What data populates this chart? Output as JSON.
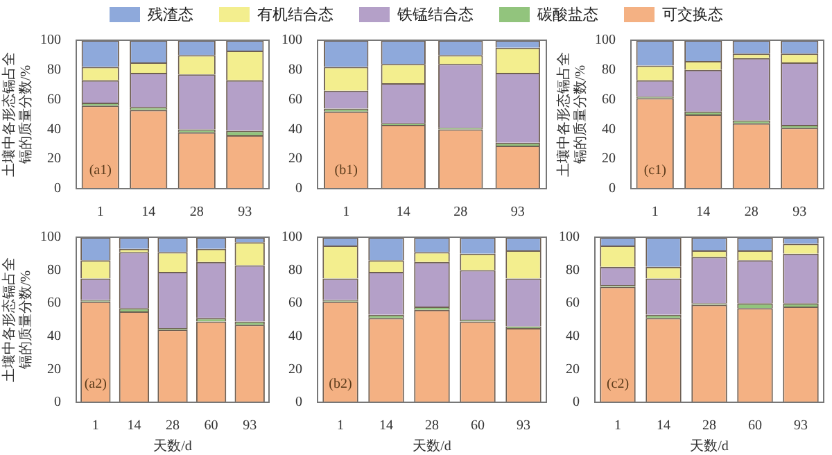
{
  "chart_data": [
    {
      "type": "bar",
      "stacked": true,
      "legend": "top",
      "ylabel": "土壤中各形态镉占全镉的质量分数/%",
      "annotations": [
        "(a1)"
      ],
      "categories": [
        "1",
        "14",
        "28",
        "93"
      ],
      "ylim": [
        0,
        100
      ],
      "yticks": [
        0,
        20,
        40,
        60,
        80,
        100
      ],
      "grid": false,
      "series": [
        {
          "name": "可交换态",
          "color": "#f4b183",
          "values": [
            56,
            53,
            38,
            36
          ]
        },
        {
          "name": "碳酸盐态",
          "color": "#92c47d",
          "values": [
            2,
            2,
            2,
            3
          ]
        },
        {
          "name": "铁锰结合态",
          "color": "#b4a0c8",
          "values": [
            15,
            23,
            37,
            34
          ]
        },
        {
          "name": "有机结合态",
          "color": "#f3ee8e",
          "values": [
            9,
            7,
            13,
            20
          ]
        },
        {
          "name": "残渣态",
          "color": "#8ea9db",
          "values": [
            18,
            15,
            10,
            7
          ]
        }
      ]
    },
    {
      "type": "bar",
      "stacked": true,
      "annotations": [
        "(b1)"
      ],
      "categories": [
        "1",
        "14",
        "28",
        "93"
      ],
      "ylim": [
        0,
        100
      ],
      "yticks": [
        0,
        20,
        40,
        60,
        80,
        100
      ],
      "grid": false,
      "series": [
        {
          "color": "#f4b183",
          "values": [
            52,
            43,
            40,
            29
          ]
        },
        {
          "color": "#92c47d",
          "values": [
            2,
            1,
            1,
            2
          ]
        },
        {
          "color": "#b4a0c8",
          "values": [
            12,
            27,
            43,
            47
          ]
        },
        {
          "color": "#f3ee8e",
          "values": [
            16,
            13,
            6,
            17
          ]
        },
        {
          "color": "#8ea9db",
          "values": [
            18,
            16,
            10,
            5
          ]
        }
      ]
    },
    {
      "type": "bar",
      "stacked": true,
      "ylabel": "土壤中各形态镉占全镉的质量分数/%",
      "annotations": [
        "(c1)"
      ],
      "categories": [
        "1",
        "14",
        "28",
        "93"
      ],
      "ylim": [
        0,
        100
      ],
      "yticks": [
        0,
        20,
        40,
        60,
        80,
        100
      ],
      "grid": false,
      "series": [
        {
          "color": "#f4b183",
          "values": [
            61,
            50,
            44,
            41
          ]
        },
        {
          "color": "#92c47d",
          "values": [
            1,
            2,
            2,
            2
          ]
        },
        {
          "color": "#b4a0c8",
          "values": [
            11,
            28,
            42,
            42
          ]
        },
        {
          "color": "#f3ee8e",
          "values": [
            10,
            6,
            3,
            6
          ]
        },
        {
          "color": "#8ea9db",
          "values": [
            17,
            14,
            9,
            9
          ]
        }
      ]
    },
    {
      "type": "bar",
      "stacked": true,
      "ylabel": "土壤中各形态镉占全镉的质量分数/%",
      "xlabel": "天数/d",
      "annotations": [
        "(a2)"
      ],
      "categories": [
        "1",
        "14",
        "28",
        "60",
        "93"
      ],
      "ylim": [
        0,
        100
      ],
      "yticks": [
        0,
        20,
        40,
        60,
        80,
        100
      ],
      "grid": false,
      "series": [
        {
          "color": "#f4b183",
          "values": [
            61,
            55,
            44,
            49,
            47
          ]
        },
        {
          "color": "#92c47d",
          "values": [
            1,
            2,
            1,
            2,
            2
          ]
        },
        {
          "color": "#b4a0c8",
          "values": [
            13,
            34,
            34,
            34,
            34
          ]
        },
        {
          "color": "#f3ee8e",
          "values": [
            11,
            2,
            12,
            8,
            14
          ]
        },
        {
          "color": "#8ea9db",
          "values": [
            14,
            7,
            9,
            7,
            3
          ]
        }
      ]
    },
    {
      "type": "bar",
      "stacked": true,
      "xlabel": "天数/d",
      "annotations": [
        "(b2)"
      ],
      "categories": [
        "1",
        "14",
        "28",
        "60",
        "93"
      ],
      "ylim": [
        0,
        100
      ],
      "yticks": [
        0,
        20,
        40,
        60,
        80,
        100
      ],
      "grid": false,
      "series": [
        {
          "color": "#f4b183",
          "values": [
            61,
            51,
            56,
            49,
            45
          ]
        },
        {
          "color": "#92c47d",
          "values": [
            1,
            2,
            2,
            1,
            1
          ]
        },
        {
          "color": "#b4a0c8",
          "values": [
            13,
            26,
            27,
            30,
            29
          ]
        },
        {
          "color": "#f3ee8e",
          "values": [
            20,
            7,
            6,
            10,
            17
          ]
        },
        {
          "color": "#8ea9db",
          "values": [
            5,
            14,
            9,
            10,
            8
          ]
        }
      ]
    },
    {
      "type": "bar",
      "stacked": true,
      "xlabel": "天数/d",
      "annotations": [
        "(c2)"
      ],
      "categories": [
        "1",
        "14",
        "28",
        "60",
        "93"
      ],
      "ylim": [
        0,
        100
      ],
      "yticks": [
        0,
        20,
        40,
        60,
        80,
        100
      ],
      "grid": false,
      "series": [
        {
          "color": "#f4b183",
          "values": [
            70,
            51,
            59,
            57,
            58
          ]
        },
        {
          "color": "#92c47d",
          "values": [
            1,
            2,
            1,
            3,
            2
          ]
        },
        {
          "color": "#b4a0c8",
          "values": [
            11,
            22,
            28,
            26,
            30
          ]
        },
        {
          "color": "#f3ee8e",
          "values": [
            13,
            7,
            4,
            6,
            6
          ]
        },
        {
          "color": "#8ea9db",
          "values": [
            5,
            18,
            8,
            8,
            4
          ]
        }
      ]
    }
  ]
}
